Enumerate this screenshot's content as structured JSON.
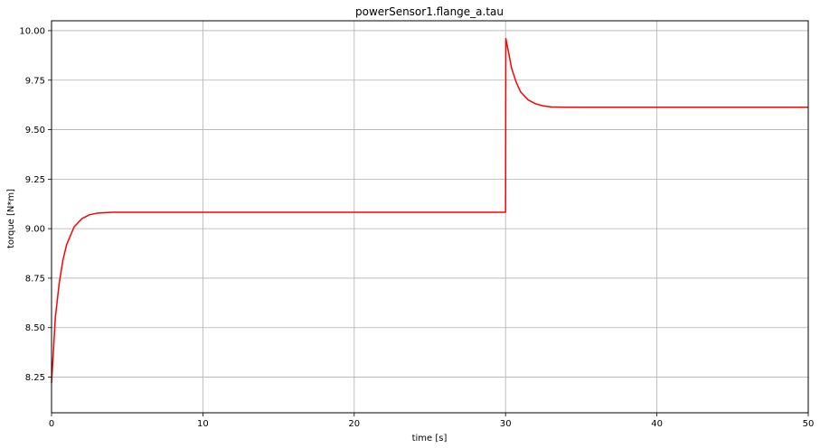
{
  "chart_data": {
    "type": "line",
    "title": "powerSensor1.flange_a.tau",
    "xlabel": "time [s]",
    "ylabel": "torque [N*m]",
    "xlim": [
      0,
      50
    ],
    "ylim": [
      8.07,
      10.05
    ],
    "xticks": [
      0,
      10,
      20,
      30,
      40,
      50
    ],
    "yticks": [
      8.25,
      8.5,
      8.75,
      9.0,
      9.25,
      9.5,
      9.75,
      10.0
    ],
    "xtick_labels": [
      "0",
      "10",
      "20",
      "30",
      "40",
      "50"
    ],
    "ytick_labels": [
      "8.25",
      "8.50",
      "8.75",
      "9.00",
      "9.25",
      "9.50",
      "9.75",
      "10.00"
    ],
    "grid": true,
    "series": [
      {
        "color": "#ff0000",
        "x": [
          0,
          0.25,
          0.5,
          0.75,
          1.0,
          1.5,
          2.0,
          2.5,
          3.0,
          4.0,
          5.0,
          10,
          20,
          30.0,
          30.02,
          30.2,
          30.4,
          30.7,
          31.0,
          31.5,
          32.0,
          32.5,
          33.0,
          34.0,
          35.0,
          40,
          50
        ],
        "y": [
          8.22,
          8.55,
          8.72,
          8.84,
          8.92,
          9.01,
          9.05,
          9.07,
          9.078,
          9.083,
          9.083,
          9.083,
          9.083,
          9.083,
          9.96,
          9.89,
          9.81,
          9.74,
          9.69,
          9.65,
          9.63,
          9.62,
          9.615,
          9.613,
          9.613,
          9.613,
          9.613
        ]
      }
    ]
  }
}
